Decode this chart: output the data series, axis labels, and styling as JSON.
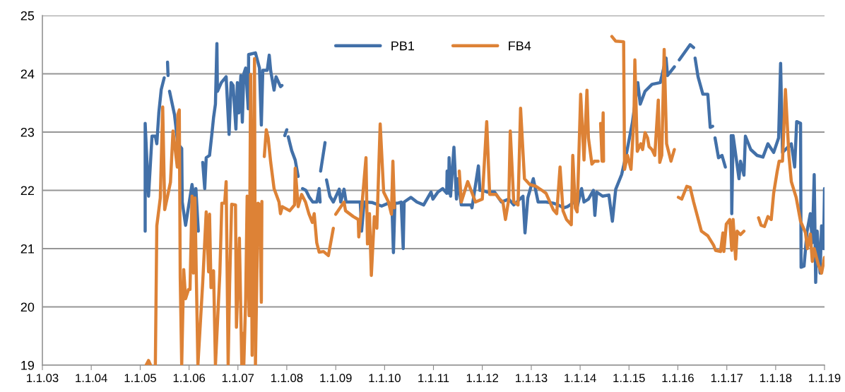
{
  "chart_data": {
    "type": "line",
    "legend": "top",
    "grid": "y",
    "marker": "none",
    "line_style": "solid",
    "xlim": [
      "2003-01-01",
      "2019-01-01"
    ],
    "ylim": [
      19,
      25
    ],
    "yticks": [
      19,
      20,
      21,
      22,
      23,
      24,
      25
    ],
    "xticks": [
      {
        "value": "2003-01-01",
        "label": "1.1.03"
      },
      {
        "value": "2004-01-01",
        "label": "1.1.04"
      },
      {
        "value": "2005-01-01",
        "label": "1.1.05"
      },
      {
        "value": "2006-01-01",
        "label": "1.1.06"
      },
      {
        "value": "2007-01-01",
        "label": "1.1.07"
      },
      {
        "value": "2008-01-01",
        "label": "1.1.08"
      },
      {
        "value": "2009-01-01",
        "label": "1.1.09"
      },
      {
        "value": "2010-01-01",
        "label": "1.1.10"
      },
      {
        "value": "2011-01-01",
        "label": "1.1.11"
      },
      {
        "value": "2012-01-01",
        "label": "1.1.12"
      },
      {
        "value": "2013-01-01",
        "label": "1.1.13"
      },
      {
        "value": "2014-01-01",
        "label": "1.1.14"
      },
      {
        "value": "2015-01-01",
        "label": "1.1.15"
      },
      {
        "value": "2016-01-01",
        "label": "1.1.16"
      },
      {
        "value": "2017-01-01",
        "label": "1.1.17"
      },
      {
        "value": "2018-01-01",
        "label": "1.1.18"
      },
      {
        "value": "2019-01-01",
        "label": "1.1.19"
      }
    ],
    "series": [
      {
        "name": "PB1",
        "color": "#4270a8",
        "x": [
          "2005-02-07",
          "2005-02-07",
          "2005-03-04",
          "2005-03-30",
          "2005-04-24",
          "2005-05-05",
          "2005-05-20",
          "2005-06-07",
          "2005-06-29",
          "2005-07-10",
          "2005-07-24",
          "2005-07-28",
          "2005-08-01",
          "2005-08-08",
          "2005-09-14",
          "2005-10-09",
          "2005-11-07",
          "2005-11-11",
          "2005-12-06",
          "2006-01-23",
          "2006-02-10",
          "2006-02-21",
          "2006-03-11",
          "2006-03-22",
          "2006-04-13",
          "2006-04-28",
          "2006-05-09",
          "2006-06-03",
          "2006-06-22",
          "2006-07-03",
          "2006-07-17",
          "2006-07-28",
          "2006-08-01",
          "2006-08-30",
          "2006-10-05",
          "2006-10-27",
          "2006-11-11",
          "2006-11-26",
          "2006-12-17",
          "2006-12-28",
          "2007-01-08",
          "2007-01-23",
          "2007-02-03",
          "2007-02-14",
          "2007-02-28",
          "2007-03-19",
          "2007-03-22",
          "2007-05-12",
          "2007-06-11",
          "2007-06-25",
          "2007-07-06",
          "2007-08-08",
          "2007-08-23",
          "2007-09-03",
          "2007-09-28",
          "2007-10-13",
          "2007-11-15",
          "2007-11-26",
          "2007-12-06",
          "2007-12-17",
          "2008-01-01",
          "2008-01-08",
          "2008-01-12",
          "2008-02-07",
          "2008-03-04",
          "2008-03-26",
          "2008-04-06",
          "2008-04-28",
          "2008-05-23",
          "2008-06-18",
          "2008-07-13",
          "2008-08-12",
          "2008-08-30",
          "2008-09-06",
          "2008-09-08",
          "2008-09-10",
          "2008-10-13",
          "2008-10-20",
          "2008-10-24",
          "2008-11-18",
          "2008-12-14",
          "2009-01-27",
          "2009-02-07",
          "2009-03-04",
          "2009-03-19",
          "2009-05-12",
          "2009-07-03",
          "2009-07-13",
          "2009-08-01",
          "2009-10-02",
          "2009-12-10",
          "2010-01-30",
          "2010-02-25",
          "2010-03-08",
          "2010-03-19",
          "2010-04-10",
          "2010-05-05",
          "2010-05-20",
          "2010-05-27",
          "2010-07-17",
          "2010-08-30",
          "2010-10-20",
          "2010-12-14",
          "2010-12-28",
          "2011-02-03",
          "2011-03-11",
          "2011-04-10",
          "2011-04-13",
          "2011-04-24",
          "2011-04-28",
          "2011-05-09",
          "2011-06-03",
          "2011-06-22",
          "2011-07-03",
          "2011-07-28",
          "2011-10-09",
          "2011-10-16",
          "2011-12-03",
          "2011-12-14",
          "2012-01-01",
          "2012-02-07",
          "2012-04-02",
          "2012-05-23",
          "2012-07-17",
          "2012-08-23",
          "2012-10-31",
          "2012-11-15",
          "2012-12-06",
          "2013-01-16",
          "2013-02-21",
          "2013-04-21",
          "2013-06-14",
          "2013-07-21",
          "2013-08-30",
          "2013-09-28",
          "2013-11-18",
          "2013-12-10",
          "2014-01-12",
          "2014-01-30",
          "2014-03-04",
          "2014-04-10",
          "2014-04-21",
          "2014-05-05",
          "2014-06-18",
          "2014-08-04",
          "2014-08-30",
          "2014-09-24",
          "2014-11-07",
          "2014-12-14",
          "2015-01-27",
          "2015-03-08",
          "2015-03-26",
          "2015-05-01",
          "2015-06-22",
          "2015-08-23",
          "2015-10-05",
          "2015-10-16",
          "2015-12-06",
          "2015-12-17",
          "2016-01-12",
          "2016-04-02",
          "2016-04-28",
          "2016-05-01",
          "2016-05-09",
          "2016-05-31",
          "2016-07-06",
          "2016-08-12",
          "2016-08-30",
          "2016-09-17",
          "2016-09-24",
          "2016-10-05",
          "2016-10-31",
          "2016-11-26",
          "2016-12-21",
          "2017-01-01",
          "2017-02-03",
          "2017-02-07",
          "2017-02-17",
          "2017-04-02",
          "2017-04-13",
          "2017-05-09",
          "2017-05-20",
          "2017-06-29",
          "2017-08-15",
          "2017-09-28",
          "2017-11-04",
          "2017-12-17",
          "2018-01-23",
          "2018-02-07",
          "2018-02-21",
          "2018-04-28",
          "2018-05-23",
          "2018-06-07",
          "2018-07-06",
          "2018-07-10",
          "2018-08-01",
          "2018-08-23",
          "2018-09-17",
          "2018-10-02",
          "2018-10-16",
          "2018-10-27",
          "2018-11-07",
          "2018-11-29",
          "2018-12-10",
          "2018-12-25",
          "2019-01-01"
        ],
        "values": [
          21.3,
          23.15,
          21.9,
          22.93,
          22.93,
          22.8,
          23.33,
          23.73,
          23.93,
          null,
          24.2,
          23.97,
          null,
          23.7,
          23.3,
          22.8,
          22.72,
          21.8,
          21.4,
          22.1,
          21.83,
          22.03,
          21.3,
          null,
          22.48,
          22.03,
          22.56,
          22.6,
          23.0,
          23.25,
          23.48,
          24.52,
          23.7,
          23.85,
          23.95,
          22.96,
          23.85,
          23.8,
          23.05,
          23.85,
          23.33,
          23.97,
          23.17,
          24.0,
          24.1,
          23.4,
          24.33,
          24.36,
          24.1,
          23.12,
          24.06,
          24.06,
          24.32,
          24.05,
          23.72,
          23.95,
          23.78,
          23.8,
          null,
          22.94,
          23.04,
          null,
          22.92,
          22.68,
          22.52,
          22.24,
          null,
          22.03,
          22.0,
          21.88,
          21.8,
          21.8,
          22.03,
          21.8,
          null,
          22.33,
          22.82,
          null,
          22.18,
          21.9,
          21.8,
          22.02,
          21.8,
          22.02,
          21.8,
          21.8,
          21.8,
          21.3,
          21.8,
          21.79,
          21.73,
          21.78,
          21.73,
          20.93,
          21.78,
          21.78,
          21.8,
          21.0,
          21.8,
          21.88,
          21.8,
          21.75,
          21.97,
          21.85,
          21.97,
          22.03,
          21.95,
          22.33,
          21.95,
          22.56,
          21.9,
          22.74,
          21.85,
          22.2,
          21.75,
          21.75,
          21.7,
          22.42,
          22.0,
          22.0,
          21.97,
          21.97,
          21.8,
          21.85,
          21.75,
          21.9,
          21.27,
          21.87,
          22.2,
          21.8,
          21.8,
          21.78,
          21.75,
          21.7,
          21.72,
          21.8,
          21.72,
          22.03,
          21.8,
          21.85,
          22.0,
          21.57,
          21.97,
          21.9,
          21.92,
          21.47,
          22.02,
          22.27,
          22.64,
          23.17,
          23.85,
          23.48,
          23.7,
          23.82,
          23.85,
          24.27,
          23.97,
          24.12,
          null,
          24.24,
          24.5,
          24.45,
          null,
          24.27,
          23.95,
          23.65,
          23.65,
          23.08,
          23.1,
          null,
          22.9,
          22.56,
          22.6,
          22.4,
          null,
          22.94,
          21.6,
          22.94,
          22.2,
          22.5,
          22.26,
          22.93,
          22.7,
          22.6,
          22.57,
          22.8,
          22.65,
          22.9,
          24.18,
          22.65,
          22.8,
          22.4,
          23.18,
          23.15,
          20.68,
          20.7,
          21.29,
          21.6,
          21.1,
          22.27,
          20.42,
          21.3,
          20.58,
          21.39,
          21.0,
          22.03
        ]
      },
      {
        "name": "FB4",
        "color": "#dd8236",
        "x": [
          "2005-02-14",
          "2005-03-04",
          "2005-03-19",
          "2005-04-02",
          "2005-04-24",
          "2005-05-05",
          "2005-05-31",
          "2005-06-18",
          "2005-07-03",
          "2005-08-15",
          "2005-09-03",
          "2005-10-05",
          "2005-10-09",
          "2005-10-20",
          "2005-10-27",
          "2005-11-07",
          "2005-11-22",
          "2005-12-06",
          "2005-12-28",
          "2006-01-08",
          "2006-01-23",
          "2006-02-03",
          "2006-02-14",
          "2006-02-25",
          "2006-03-08",
          "2006-04-13",
          "2006-04-17",
          "2006-05-09",
          "2006-05-27",
          "2006-06-03",
          "2006-06-14",
          "2006-07-03",
          "2006-07-17",
          "2006-08-19",
          "2006-09-03",
          "2006-09-24",
          "2006-10-05",
          "2006-10-20",
          "2006-10-31",
          "2006-11-15",
          "2006-12-14",
          "2006-12-21",
          "2007-01-12",
          "2007-01-30",
          "2007-02-03",
          "2007-02-14",
          "2007-02-28",
          "2007-03-11",
          "2007-03-26",
          "2007-04-06",
          "2007-04-17",
          "2007-05-05",
          "2007-05-12",
          "2007-05-31",
          "2007-06-14",
          "2007-06-25",
          "2007-06-29",
          "2007-07-06",
          "2007-07-17",
          "2007-08-01",
          "2007-08-15",
          "2007-09-03",
          "2007-09-28",
          "2007-11-04",
          "2007-11-15",
          "2007-11-29",
          "2008-01-23",
          "2008-02-28",
          "2008-03-04",
          "2008-03-26",
          "2008-04-21",
          "2008-05-20",
          "2008-06-14",
          "2008-07-10",
          "2008-07-24",
          "2008-08-12",
          "2008-08-30",
          "2008-10-02",
          "2008-11-07",
          "2008-12-14",
          "2008-12-21",
          "2009-01-01",
          "2009-03-04",
          "2009-03-15",
          "2009-05-12",
          "2009-06-18",
          "2009-06-22",
          "2009-07-13",
          "2009-08-15",
          "2009-08-26",
          "2009-09-10",
          "2009-09-24",
          "2009-10-16",
          "2009-11-04",
          "2009-11-29",
          "2009-12-25",
          "2010-01-30",
          "2010-02-21",
          "2010-03-04",
          "2010-03-15",
          "2010-04-21",
          "2011-07-13",
          "2011-07-28",
          "2011-09-14",
          "2011-10-09",
          "2011-11-11",
          "2012-01-01",
          "2012-02-03",
          "2012-02-25",
          "2012-04-13",
          "2012-05-09",
          "2012-06-03",
          "2012-06-22",
          "2012-07-17",
          "2012-07-28",
          "2012-08-23",
          "2012-09-24",
          "2012-10-13",
          "2012-11-11",
          "2012-12-21",
          "2013-02-03",
          "2013-03-22",
          "2013-04-21",
          "2013-06-14",
          "2013-07-10",
          "2013-08-04",
          "2013-08-26",
          "2013-09-21",
          "2013-10-27",
          "2013-11-07",
          "2013-11-26",
          "2013-12-10",
          "2014-01-05",
          "2014-01-30",
          "2014-02-21",
          "2014-03-04",
          "2014-03-30",
          "2014-04-17",
          "2014-05-16",
          "2014-05-23",
          "2014-06-03",
          "2014-06-14",
          "2014-06-22",
          "2014-06-25",
          "2014-07-21",
          "2014-08-26",
          "2014-09-24",
          "2014-11-22",
          "2014-11-29",
          "2014-12-21",
          "2015-01-16",
          "2015-02-07",
          "2015-02-14",
          "2015-03-04",
          "2015-03-30",
          "2015-04-13",
          "2015-05-01",
          "2015-05-20",
          "2015-05-31",
          "2015-06-22",
          "2015-07-13",
          "2015-08-08",
          "2015-08-19",
          "2015-09-03",
          "2015-09-21",
          "2015-10-09",
          "2015-11-11",
          "2015-12-06",
          "2015-12-21",
          "2016-01-05",
          "2016-01-30",
          "2016-03-08",
          "2016-04-02",
          "2016-04-28",
          "2016-06-25",
          "2016-08-12",
          "2016-09-24",
          "2016-10-09",
          "2016-11-15",
          "2016-12-03",
          "2016-12-10",
          "2016-12-28",
          "2017-01-23",
          "2017-02-07",
          "2017-02-17",
          "2017-03-08",
          "2017-03-19",
          "2017-04-13",
          "2017-05-09",
          "2017-06-14",
          "2017-08-26",
          "2017-09-14",
          "2017-10-09",
          "2017-11-04",
          "2017-11-29",
          "2017-12-17",
          "2018-01-12",
          "2018-01-27",
          "2018-02-21",
          "2018-03-15",
          "2018-04-10",
          "2018-04-28",
          "2018-06-03",
          "2018-07-06",
          "2018-08-12",
          "2018-08-26",
          "2018-09-17",
          "2018-10-02",
          "2018-10-16",
          "2018-11-15",
          "2018-12-10",
          "2019-01-01"
        ],
        "values": [
          19.0,
          19.08,
          19.0,
          null,
          19.0,
          21.39,
          21.87,
          23.43,
          21.67,
          22.14,
          23.02,
          22.4,
          23.3,
          23.38,
          20.5,
          19.0,
          20.64,
          20.14,
          20.3,
          20.3,
          21.9,
          20.58,
          21.87,
          20.42,
          19.0,
          20.42,
          20.6,
          21.63,
          20.6,
          21.59,
          20.33,
          20.62,
          19.0,
          20.58,
          21.78,
          21.78,
          22.15,
          19.0,
          20.38,
          21.76,
          21.75,
          19.65,
          21.18,
          19.0,
          19.55,
          19.0,
          20.14,
          21.9,
          19.85,
          23.99,
          19.17,
          24.26,
          19.0,
          21.78,
          21.75,
          20.08,
          21.81,
          null,
          22.58,
          23.04,
          22.9,
          22.48,
          22.03,
          21.8,
          21.6,
          21.72,
          21.65,
          21.75,
          22.38,
          21.72,
          21.93,
          21.8,
          21.6,
          21.45,
          21.6,
          21.1,
          20.94,
          20.95,
          20.88,
          21.35,
          null,
          21.59,
          21.8,
          21.65,
          21.55,
          21.5,
          21.2,
          21.68,
          22.56,
          21.08,
          21.6,
          20.54,
          21.55,
          21.35,
          23.14,
          21.97,
          21.8,
          21.59,
          22.5,
          21.7,
          null,
          22.33,
          21.8,
          22.15,
          22.0,
          21.8,
          21.85,
          23.18,
          21.93,
          21.93,
          21.85,
          21.8,
          21.5,
          21.85,
          23.02,
          21.8,
          21.75,
          23.41,
          22.2,
          22.1,
          22.07,
          22.0,
          21.95,
          21.67,
          21.6,
          22.4,
          21.65,
          21.5,
          21.41,
          22.6,
          21.7,
          21.63,
          23.65,
          22.52,
          23.72,
          22.9,
          22.45,
          22.5,
          22.5,
          null,
          23.15,
          22.5,
          23.33,
          22.5,
          null,
          24.64,
          24.56,
          24.55,
          22.36,
          22.6,
          22.36,
          23.24,
          24.24,
          22.67,
          22.8,
          22.7,
          22.99,
          22.9,
          22.75,
          22.7,
          22.6,
          23.55,
          22.48,
          22.6,
          24.42,
          22.8,
          22.5,
          22.7,
          null,
          21.88,
          21.85,
          22.07,
          22.05,
          21.8,
          21.3,
          21.22,
          21.06,
          20.97,
          20.95,
          21.27,
          20.95,
          21.42,
          21.5,
          20.97,
          21.5,
          20.82,
          21.3,
          21.24,
          21.3,
          null,
          21.53,
          21.4,
          21.38,
          21.55,
          21.5,
          21.95,
          22.32,
          22.5,
          22.5,
          23.73,
          22.6,
          22.15,
          21.88,
          21.47,
          21.27,
          21.0,
          21.25,
          20.78,
          21.0,
          20.73,
          20.58,
          20.85
        ]
      }
    ]
  }
}
